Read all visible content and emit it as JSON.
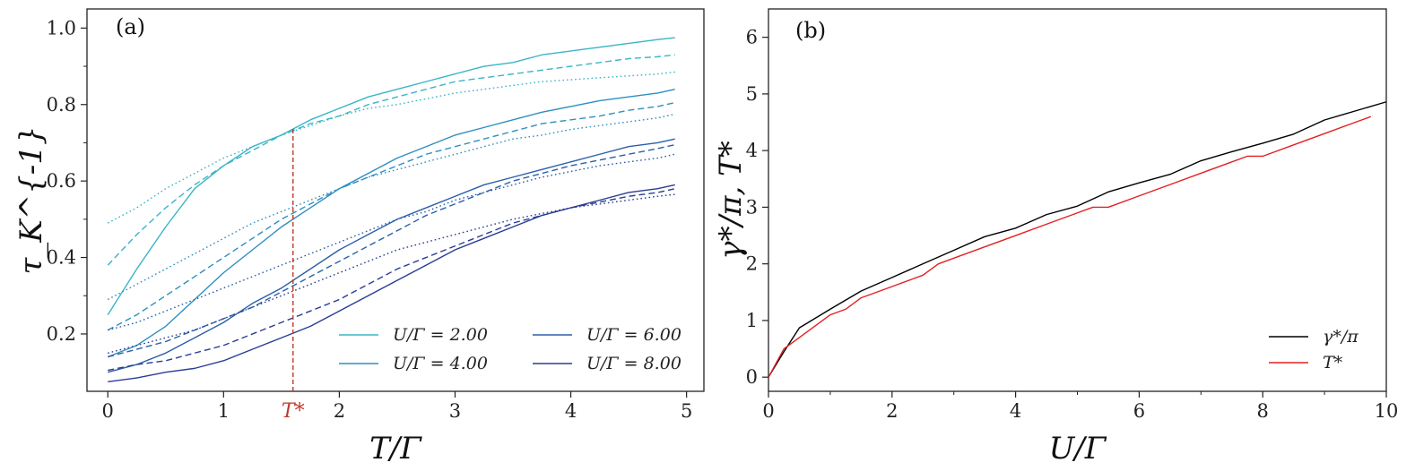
{
  "chart_data": [
    {
      "panel": "a",
      "panel_label": "(a)",
      "type": "line",
      "xlabel": "T/Γ",
      "ylabel": "τ_K^{-1}",
      "xlim": [
        -0.18,
        5.15
      ],
      "ylim": [
        0.05,
        1.05
      ],
      "xticks": [
        0,
        1,
        2,
        3,
        4,
        5
      ],
      "yticks": [
        0.2,
        0.4,
        0.6,
        0.8,
        1.0
      ],
      "xtick_labels": [
        "0",
        "1",
        "2",
        "3",
        "4",
        "5"
      ],
      "ytick_labels": [
        "0.2",
        "0.4",
        "0.6",
        "0.8",
        "1.0"
      ],
      "x": [
        0,
        0.25,
        0.5,
        0.75,
        1.0,
        1.25,
        1.5,
        1.75,
        2.0,
        2.25,
        2.5,
        2.75,
        3.0,
        3.25,
        3.5,
        3.75,
        4.0,
        4.25,
        4.5,
        4.75,
        4.9
      ],
      "marker_T_star": {
        "x": 1.6,
        "y": 0.74,
        "label": "T*",
        "color": "#c0392b"
      },
      "series": [
        {
          "name": "U/Γ = 2.00",
          "style": "solid",
          "color": "#39b5c6",
          "legend": true,
          "values": [
            0.25,
            0.37,
            0.48,
            0.58,
            0.64,
            0.69,
            0.72,
            0.76,
            0.79,
            0.82,
            0.84,
            0.86,
            0.88,
            0.9,
            0.91,
            0.93,
            0.94,
            0.95,
            0.96,
            0.97,
            0.975
          ]
        },
        {
          "name": "U/Γ = 2.00 dashed",
          "style": "dashed",
          "color": "#39b5c6",
          "legend": false,
          "values": [
            0.38,
            0.46,
            0.53,
            0.59,
            0.64,
            0.68,
            0.72,
            0.75,
            0.77,
            0.8,
            0.82,
            0.84,
            0.86,
            0.87,
            0.88,
            0.89,
            0.9,
            0.91,
            0.92,
            0.925,
            0.93
          ]
        },
        {
          "name": "U/Γ = 2.00 dotted",
          "style": "dotted",
          "color": "#39b5c6",
          "legend": false,
          "values": [
            0.49,
            0.53,
            0.58,
            0.62,
            0.66,
            0.69,
            0.72,
            0.745,
            0.77,
            0.79,
            0.8,
            0.815,
            0.83,
            0.84,
            0.85,
            0.86,
            0.865,
            0.87,
            0.875,
            0.88,
            0.885
          ]
        },
        {
          "name": "U/Γ = 4.00",
          "style": "solid",
          "color": "#2e8fc0",
          "legend": true,
          "values": [
            0.14,
            0.17,
            0.22,
            0.29,
            0.36,
            0.42,
            0.48,
            0.53,
            0.58,
            0.62,
            0.66,
            0.69,
            0.72,
            0.74,
            0.76,
            0.78,
            0.795,
            0.81,
            0.82,
            0.83,
            0.84
          ]
        },
        {
          "name": "U/Γ = 4.00 dashed",
          "style": "dashed",
          "color": "#2e8fc0",
          "legend": false,
          "values": [
            0.21,
            0.25,
            0.3,
            0.35,
            0.4,
            0.45,
            0.5,
            0.54,
            0.58,
            0.61,
            0.64,
            0.67,
            0.69,
            0.71,
            0.73,
            0.75,
            0.76,
            0.77,
            0.785,
            0.795,
            0.805
          ]
        },
        {
          "name": "U/Γ = 4.00 dotted",
          "style": "dotted",
          "color": "#2e8fc0",
          "legend": false,
          "values": [
            0.29,
            0.33,
            0.37,
            0.41,
            0.45,
            0.49,
            0.52,
            0.55,
            0.58,
            0.61,
            0.63,
            0.65,
            0.67,
            0.69,
            0.71,
            0.72,
            0.735,
            0.745,
            0.755,
            0.765,
            0.775
          ]
        },
        {
          "name": "U/Γ = 6.00",
          "style": "solid",
          "color": "#2b5fa8",
          "legend": true,
          "values": [
            0.1,
            0.12,
            0.15,
            0.19,
            0.23,
            0.28,
            0.32,
            0.37,
            0.42,
            0.46,
            0.5,
            0.53,
            0.56,
            0.59,
            0.61,
            0.63,
            0.65,
            0.67,
            0.69,
            0.7,
            0.71
          ]
        },
        {
          "name": "U/Γ = 6.00 dashed",
          "style": "dashed",
          "color": "#2b5fa8",
          "legend": false,
          "values": [
            0.14,
            0.16,
            0.18,
            0.21,
            0.24,
            0.27,
            0.31,
            0.35,
            0.39,
            0.43,
            0.47,
            0.51,
            0.54,
            0.57,
            0.6,
            0.62,
            0.64,
            0.655,
            0.67,
            0.685,
            0.695
          ]
        },
        {
          "name": "U/Γ = 6.00 dotted",
          "style": "dotted",
          "color": "#2b5fa8",
          "legend": false,
          "values": [
            0.21,
            0.23,
            0.26,
            0.29,
            0.32,
            0.35,
            0.38,
            0.41,
            0.44,
            0.47,
            0.5,
            0.52,
            0.55,
            0.57,
            0.59,
            0.61,
            0.625,
            0.64,
            0.65,
            0.66,
            0.67
          ]
        },
        {
          "name": "U/Γ = 8.00",
          "style": "solid",
          "color": "#2a3d93",
          "legend": true,
          "values": [
            0.075,
            0.085,
            0.1,
            0.11,
            0.13,
            0.16,
            0.19,
            0.22,
            0.26,
            0.3,
            0.34,
            0.38,
            0.42,
            0.45,
            0.48,
            0.51,
            0.53,
            0.55,
            0.57,
            0.58,
            0.59
          ]
        },
        {
          "name": "U/Γ = 8.00 dashed",
          "style": "dashed",
          "color": "#2a3d93",
          "legend": false,
          "values": [
            0.105,
            0.12,
            0.13,
            0.15,
            0.17,
            0.2,
            0.23,
            0.26,
            0.29,
            0.33,
            0.37,
            0.4,
            0.43,
            0.46,
            0.49,
            0.51,
            0.53,
            0.545,
            0.56,
            0.57,
            0.58
          ]
        },
        {
          "name": "U/Γ = 8.00 dotted",
          "style": "dotted",
          "color": "#2a3d93",
          "legend": false,
          "values": [
            0.15,
            0.17,
            0.19,
            0.21,
            0.24,
            0.27,
            0.3,
            0.33,
            0.36,
            0.39,
            0.42,
            0.44,
            0.46,
            0.48,
            0.5,
            0.515,
            0.53,
            0.54,
            0.55,
            0.56,
            0.565
          ]
        }
      ],
      "legend_entries": [
        {
          "label": "U/Γ = 2.00",
          "color": "#39b5c6"
        },
        {
          "label": "U/Γ = 4.00",
          "color": "#2e8fc0"
        },
        {
          "label": "U/Γ = 6.00",
          "color": "#2b5fa8"
        },
        {
          "label": "U/Γ = 8.00",
          "color": "#2a3d93"
        }
      ],
      "legend_placement": "bottom-right"
    },
    {
      "panel": "b",
      "panel_label": "(b)",
      "type": "line",
      "xlabel": "U/Γ",
      "ylabel": "γ*/π, T*",
      "xlim": [
        0,
        10
      ],
      "ylim": [
        -0.25,
        6.5
      ],
      "xticks": [
        0,
        2,
        4,
        6,
        8,
        10
      ],
      "yticks": [
        0,
        1,
        2,
        3,
        4,
        5,
        6
      ],
      "xtick_labels": [
        "0",
        "2",
        "4",
        "6",
        "8",
        "10"
      ],
      "ytick_labels": [
        "0",
        "1",
        "2",
        "3",
        "4",
        "5",
        "6"
      ],
      "series": [
        {
          "name": "γ*/π",
          "color": "#000000",
          "x": [
            0,
            0.25,
            0.5,
            1.0,
            1.5,
            2.0,
            2.5,
            3.0,
            3.5,
            4.0,
            4.5,
            5.0,
            5.5,
            6.0,
            6.5,
            7.0,
            7.5,
            8.0,
            8.5,
            9.0,
            9.5,
            10.0
          ],
          "values": [
            0,
            0.45,
            0.87,
            1.2,
            1.52,
            1.76,
            2.0,
            2.24,
            2.48,
            2.63,
            2.87,
            3.02,
            3.27,
            3.43,
            3.58,
            3.82,
            3.98,
            4.13,
            4.29,
            4.54,
            4.7,
            4.86
          ]
        },
        {
          "name": "T*",
          "color": "#e32020",
          "x": [
            0,
            0.25,
            0.5,
            1.0,
            1.25,
            1.5,
            2.0,
            2.5,
            2.75,
            3.0,
            3.5,
            4.0,
            4.5,
            5.0,
            5.25,
            5.5,
            6.0,
            6.5,
            7.0,
            7.5,
            7.75,
            8.0,
            8.5,
            9.0,
            9.5,
            9.75
          ],
          "values": [
            0,
            0.5,
            0.7,
            1.1,
            1.2,
            1.4,
            1.6,
            1.8,
            2.0,
            2.1,
            2.3,
            2.5,
            2.7,
            2.9,
            3.0,
            3.0,
            3.2,
            3.4,
            3.6,
            3.8,
            3.9,
            3.9,
            4.1,
            4.3,
            4.5,
            4.6
          ]
        }
      ],
      "legend_entries": [
        {
          "label": "γ*/π",
          "color": "#000000"
        },
        {
          "label": "T*",
          "color": "#e32020"
        }
      ],
      "legend_placement": "bottom-right"
    }
  ]
}
